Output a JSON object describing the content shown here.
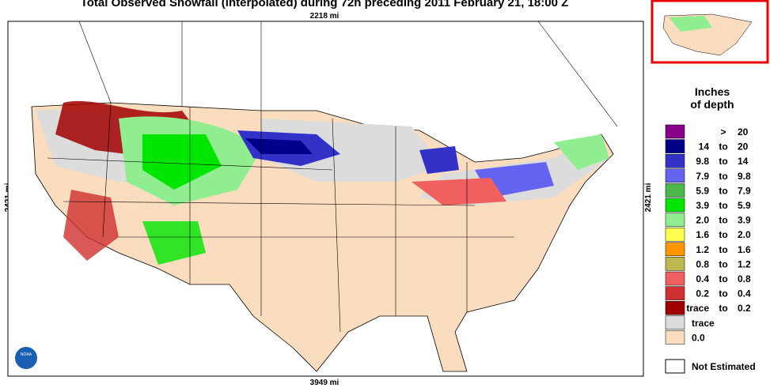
{
  "header": {
    "title": "Total Observed Snowfall (interpolated) during 72h preceding 2011 February 21, 18:00 Z"
  },
  "map": {
    "top_label": "2218 mi",
    "bottom_label": "3949 mi",
    "left_label": "2421 mi",
    "right_label": "2421 mi"
  },
  "legend": {
    "title_line1": "Inches",
    "title_line2": "of depth",
    "items": [
      {
        "color": "#8b008b",
        "sep": ">",
        "high": "20"
      },
      {
        "color": "#00008b",
        "low": "14",
        "sep": "to",
        "high": "20"
      },
      {
        "color": "#3232c8",
        "low": "9.8",
        "sep": "to",
        "high": "14"
      },
      {
        "color": "#6464f0",
        "low": "7.9",
        "sep": "to",
        "high": "9.8"
      },
      {
        "color": "#4cb84c",
        "low": "5.9",
        "sep": "to",
        "high": "7.9"
      },
      {
        "color": "#00e600",
        "low": "3.9",
        "sep": "to",
        "high": "5.9"
      },
      {
        "color": "#90ee90",
        "low": "2.0",
        "sep": "to",
        "high": "3.9"
      },
      {
        "color": "#ffff50",
        "low": "1.6",
        "sep": "to",
        "high": "2.0"
      },
      {
        "color": "#ff9600",
        "low": "1.2",
        "sep": "to",
        "high": "1.6"
      },
      {
        "color": "#bdb850",
        "low": "0.8",
        "sep": "to",
        "high": "1.2"
      },
      {
        "color": "#f06060",
        "low": "0.4",
        "sep": "to",
        "high": "0.8"
      },
      {
        "color": "#d03030",
        "low": "0.2",
        "sep": "to",
        "high": "0.4"
      },
      {
        "color": "#a00000",
        "low": "trace",
        "sep": "to",
        "high": "0.2"
      },
      {
        "color": "#dcdcdc",
        "low": "trace"
      },
      {
        "color": "#fadcbe",
        "low": "0.0"
      }
    ],
    "not_estimated": "Not Estimated"
  }
}
